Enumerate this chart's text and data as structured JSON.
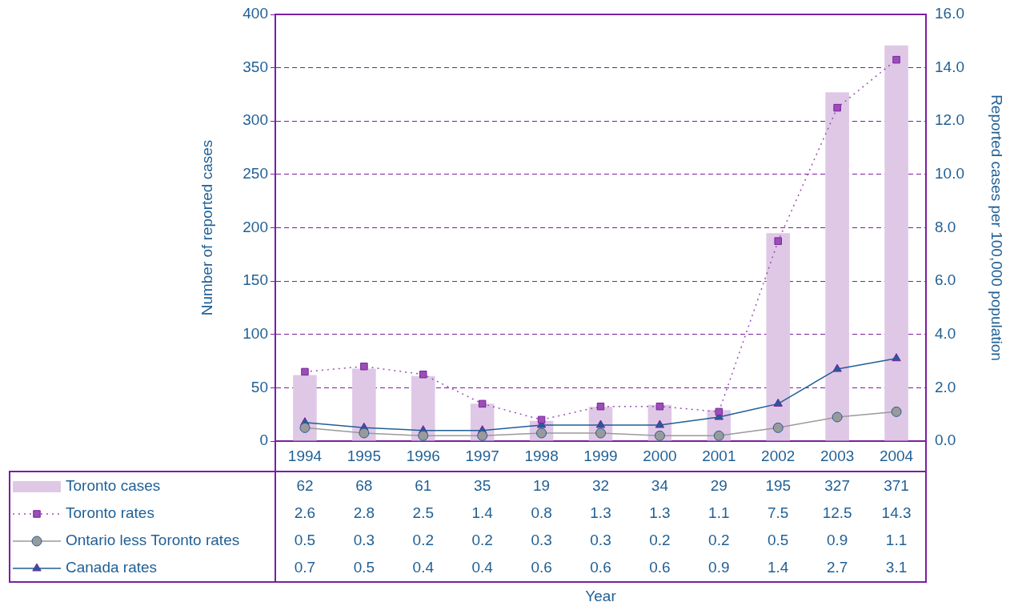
{
  "chart_data": {
    "type": "bar",
    "annotations": [
      "Year"
    ],
    "ylabel": "Number of reported cases",
    "y2label": "Reported cases per 100,000 population",
    "categories": [
      "1994",
      "1995",
      "1996",
      "1997",
      "1998",
      "1999",
      "2000",
      "2001",
      "2002",
      "2003",
      "2004"
    ],
    "series": [
      {
        "name": "Toronto cases",
        "color": "#dfc8e6",
        "values": [
          62,
          68,
          61,
          35,
          19,
          32,
          34,
          29,
          195,
          327,
          371
        ]
      },
      {
        "name": "Toronto rates",
        "type": "line",
        "axis": "y2",
        "color": "#9a4fb4",
        "marker": "square",
        "line_style": "dotted",
        "values": [
          2.6,
          2.8,
          2.5,
          1.4,
          0.8,
          1.3,
          1.3,
          1.1,
          7.5,
          12.5,
          14.3
        ]
      },
      {
        "name": "Ontario less Toronto rates",
        "type": "line",
        "axis": "y2",
        "color": "#9a9a9a",
        "marker": "circle",
        "line_style": "solid",
        "values": [
          0.5,
          0.3,
          0.2,
          0.2,
          0.3,
          0.3,
          0.2,
          0.2,
          0.5,
          0.9,
          1.1
        ]
      },
      {
        "name": "Canada rates",
        "type": "line",
        "axis": "y2",
        "color": "#1f5f95",
        "marker": "triangle",
        "line_style": "solid",
        "values": [
          0.7,
          0.5,
          0.4,
          0.4,
          0.6,
          0.6,
          0.6,
          0.9,
          1.4,
          2.7,
          3.1
        ]
      }
    ],
    "ylim": [
      0,
      400
    ],
    "yticks": [
      0,
      50,
      100,
      150,
      200,
      250,
      300,
      350,
      400
    ],
    "y2lim": [
      0,
      16
    ],
    "y2ticks": [
      {
        "value": 0,
        "label": "0.0"
      },
      {
        "value": 2,
        "label": "2.0"
      },
      {
        "value": 4,
        "label": "4.0"
      },
      {
        "value": 6,
        "label": "6.0"
      },
      {
        "value": 8,
        "label": "8.0"
      },
      {
        "value": 10,
        "label": "10.0"
      },
      {
        "value": 12,
        "label": "12.0"
      },
      {
        "value": 14,
        "label": "14.0"
      },
      {
        "value": 16,
        "label": "16.0"
      }
    ],
    "grid": "y",
    "legend": "bottom",
    "data_labels": true
  }
}
